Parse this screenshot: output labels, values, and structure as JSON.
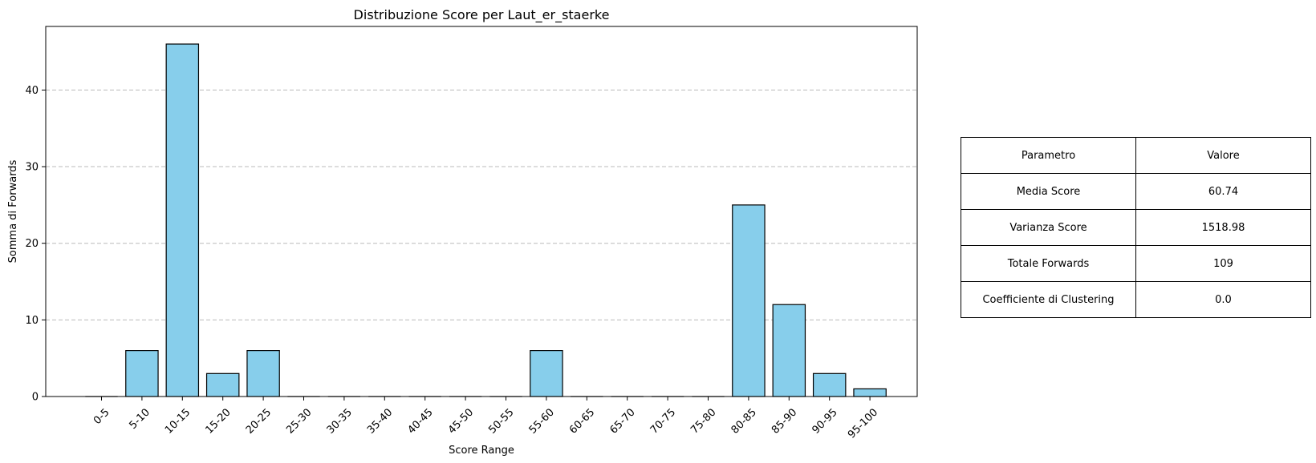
{
  "chart_data": {
    "type": "bar",
    "title": "Distribuzione Score per Laut_er_staerke",
    "xlabel": "Score Range",
    "ylabel": "Somma di Forwards",
    "categories": [
      "0-5",
      "5-10",
      "10-15",
      "15-20",
      "20-25",
      "25-30",
      "30-35",
      "35-40",
      "40-45",
      "45-50",
      "50-55",
      "55-60",
      "60-65",
      "65-70",
      "70-75",
      "75-80",
      "80-85",
      "85-90",
      "90-95",
      "95-100"
    ],
    "values": [
      0,
      6,
      46,
      3,
      6,
      0,
      0,
      0,
      0,
      0,
      0,
      6,
      0,
      0,
      0,
      0,
      25,
      12,
      3,
      1
    ],
    "ylim": [
      0,
      48.3
    ],
    "yticks": [
      0,
      10,
      20,
      30,
      40
    ],
    "grid": "y",
    "bar_color": "#87ceeb",
    "edge_color": "#000000",
    "grid_color": "#bbbbbb"
  },
  "table": {
    "header": [
      "Parametro",
      "Valore"
    ],
    "rows": [
      [
        "Media Score",
        "60.74"
      ],
      [
        "Varianza Score",
        "1518.98"
      ],
      [
        "Totale Forwards",
        "109"
      ],
      [
        "Coefficiente di Clustering",
        "0.0"
      ]
    ]
  }
}
